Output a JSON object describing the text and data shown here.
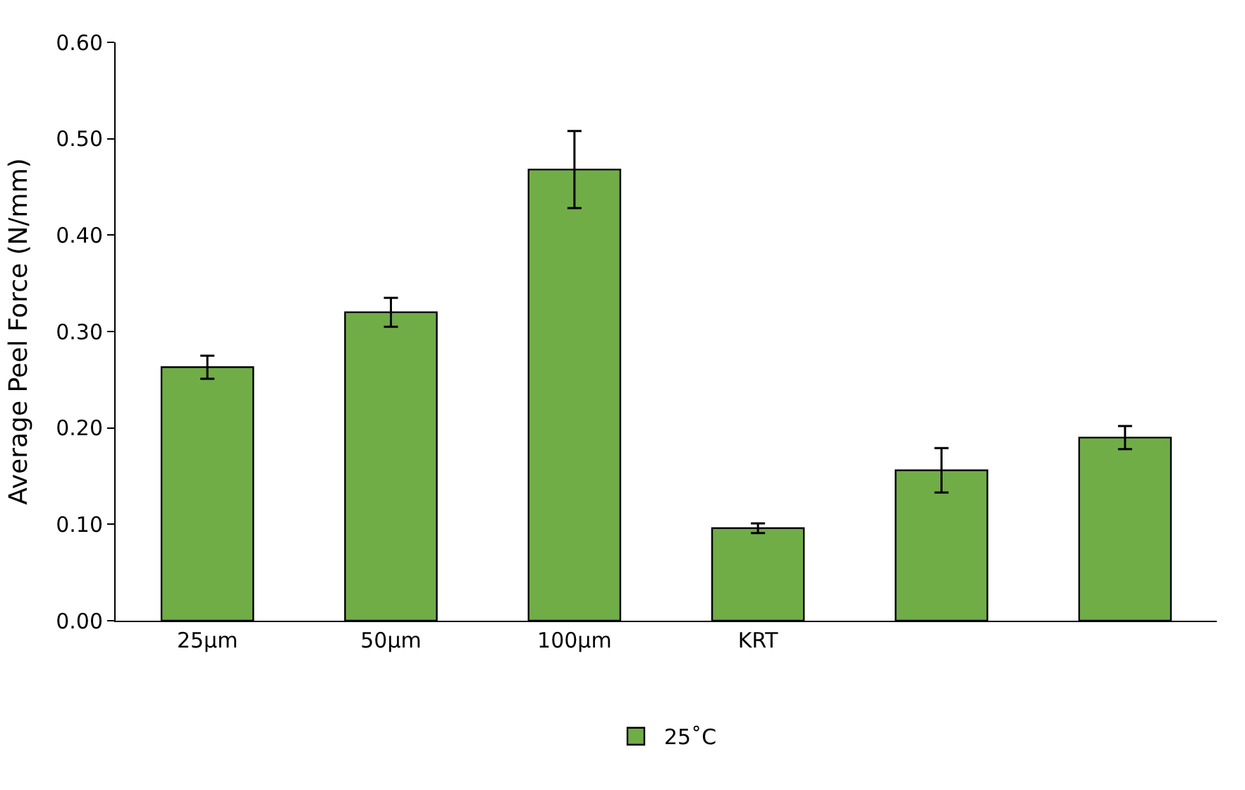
{
  "chart_data": {
    "type": "bar",
    "ylabel": "Average Peel Force (N/mm)",
    "categories": [
      "25µm",
      "50µm",
      "100µm",
      "KRT",
      null,
      null
    ],
    "series": [
      {
        "name": "25˚C",
        "color": "#70ad47",
        "values": [
          0.263,
          0.32,
          0.468,
          0.096,
          0.156,
          0.19
        ],
        "errors": [
          0.012,
          0.015,
          0.04,
          0.005,
          0.023,
          0.012
        ]
      }
    ],
    "ylim": [
      0,
      0.6
    ],
    "yticks": [
      {
        "value": 0,
        "label": "0.00"
      },
      {
        "value": 0.1,
        "label": "0.10"
      },
      {
        "value": 0.2,
        "label": "0.20"
      },
      {
        "value": 0.3,
        "label": "0.30"
      },
      {
        "value": 0.4,
        "label": "0.40"
      },
      {
        "value": 0.5,
        "label": "0.50"
      },
      {
        "value": 0.6,
        "label": "0.60"
      }
    ],
    "legend": "bottom"
  }
}
